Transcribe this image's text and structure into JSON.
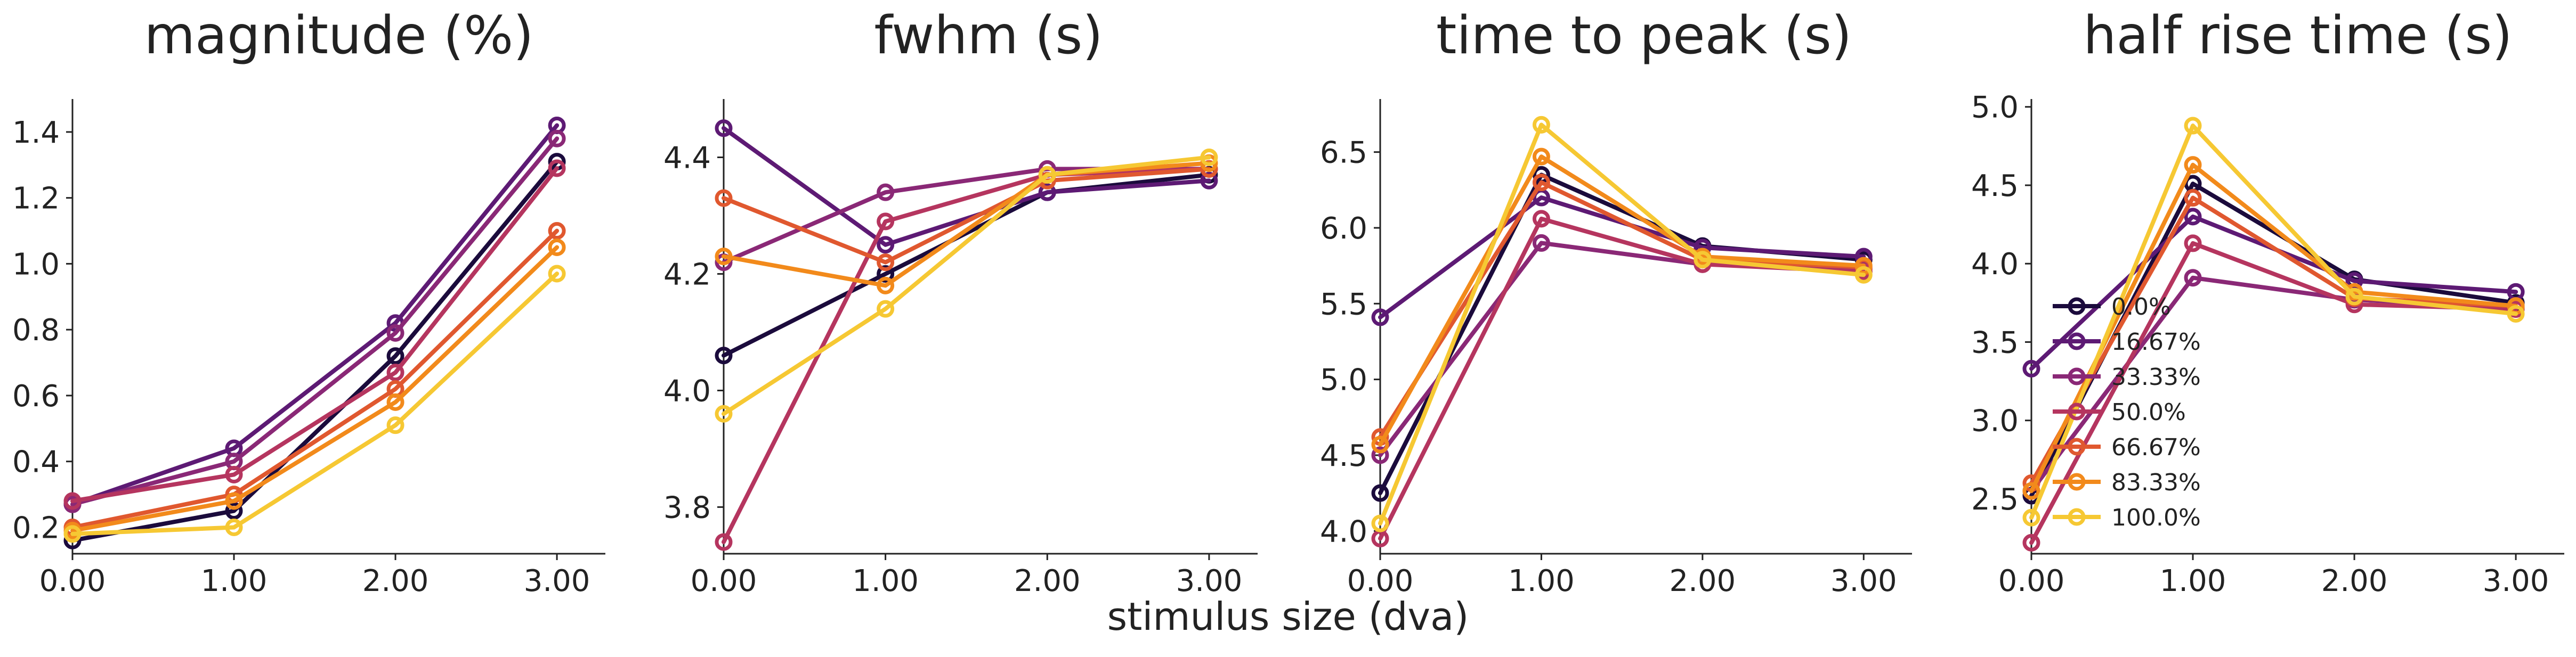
{
  "figure": {
    "xlabel": "stimulus size (dva)"
  },
  "series_colors": {
    "0.0%": "#1b0b3c",
    "16.67%": "#5d1a74",
    "33.33%": "#8a2876",
    "50.0%": "#b5355f",
    "66.67%": "#e0582f",
    "83.33%": "#f28a1b",
    "100.0%": "#f6c833"
  },
  "chart_data": [
    {
      "type": "line",
      "title": "magnitude (%)",
      "xlabel": "",
      "ylabel": "",
      "x": [
        0,
        1,
        2,
        3
      ],
      "xticks": [
        "0.00",
        "1.00",
        "2.00",
        "3.00"
      ],
      "xlim": [
        0,
        3.3
      ],
      "ylim": [
        0.12,
        1.5
      ],
      "yticks": [
        0.2,
        0.4,
        0.6,
        0.8,
        1.0,
        1.2,
        1.4
      ],
      "yticklabels": [
        "0.2",
        "0.4",
        "0.6",
        "0.8",
        "1.0",
        "1.2",
        "1.4"
      ],
      "series": [
        {
          "name": "0.0%",
          "values": [
            0.16,
            0.25,
            0.72,
            1.31
          ]
        },
        {
          "name": "16.67%",
          "values": [
            0.27,
            0.44,
            0.82,
            1.42
          ]
        },
        {
          "name": "33.33%",
          "values": [
            0.27,
            0.4,
            0.79,
            1.38
          ]
        },
        {
          "name": "50.0%",
          "values": [
            0.28,
            0.36,
            0.67,
            1.29
          ]
        },
        {
          "name": "66.67%",
          "values": [
            0.2,
            0.3,
            0.62,
            1.1
          ]
        },
        {
          "name": "83.33%",
          "values": [
            0.19,
            0.28,
            0.58,
            1.05
          ]
        },
        {
          "name": "100.0%",
          "values": [
            0.18,
            0.2,
            0.51,
            0.97
          ]
        }
      ],
      "grid": false,
      "legend": null
    },
    {
      "type": "line",
      "title": "fwhm (s)",
      "xlabel": "",
      "ylabel": "",
      "x": [
        0,
        1,
        2,
        3
      ],
      "xticks": [
        "0.00",
        "1.00",
        "2.00",
        "3.00"
      ],
      "xlim": [
        0,
        3.3
      ],
      "ylim": [
        3.72,
        4.5
      ],
      "yticks": [
        3.8,
        4.0,
        4.2,
        4.4
      ],
      "yticklabels": [
        "3.8",
        "4.0",
        "4.2",
        "4.4"
      ],
      "series": [
        {
          "name": "0.0%",
          "values": [
            4.06,
            4.2,
            4.34,
            4.37
          ]
        },
        {
          "name": "16.67%",
          "values": [
            4.45,
            4.25,
            4.34,
            4.36
          ]
        },
        {
          "name": "33.33%",
          "values": [
            4.22,
            4.34,
            4.38,
            4.38
          ]
        },
        {
          "name": "50.0%",
          "values": [
            3.74,
            4.29,
            4.37,
            4.38
          ]
        },
        {
          "name": "66.67%",
          "values": [
            4.33,
            4.22,
            4.36,
            4.38
          ]
        },
        {
          "name": "83.33%",
          "values": [
            4.23,
            4.18,
            4.37,
            4.39
          ]
        },
        {
          "name": "100.0%",
          "values": [
            3.96,
            4.14,
            4.37,
            4.4
          ]
        }
      ],
      "grid": false,
      "legend": null
    },
    {
      "type": "line",
      "title": "time to peak (s)",
      "xlabel": "",
      "ylabel": "",
      "x": [
        0,
        1,
        2,
        3
      ],
      "xticks": [
        "0.00",
        "1.00",
        "2.00",
        "3.00"
      ],
      "xlim": [
        0,
        3.3
      ],
      "ylim": [
        3.85,
        6.85
      ],
      "yticks": [
        4.0,
        4.5,
        5.0,
        5.5,
        6.0,
        6.5
      ],
      "yticklabels": [
        "4.0",
        "4.5",
        "5.0",
        "5.5",
        "6.0",
        "6.5"
      ],
      "series": [
        {
          "name": "0.0%",
          "values": [
            4.25,
            6.35,
            5.88,
            5.79
          ]
        },
        {
          "name": "16.67%",
          "values": [
            5.41,
            6.2,
            5.87,
            5.81
          ]
        },
        {
          "name": "33.33%",
          "values": [
            4.5,
            5.9,
            5.76,
            5.73
          ]
        },
        {
          "name": "50.0%",
          "values": [
            3.95,
            6.06,
            5.76,
            5.71
          ]
        },
        {
          "name": "66.67%",
          "values": [
            4.62,
            6.3,
            5.79,
            5.74
          ]
        },
        {
          "name": "83.33%",
          "values": [
            4.57,
            6.47,
            5.81,
            5.75
          ]
        },
        {
          "name": "100.0%",
          "values": [
            4.05,
            6.68,
            5.79,
            5.69
          ]
        }
      ],
      "grid": false,
      "legend": null
    },
    {
      "type": "line",
      "title": "half rise time (s)",
      "xlabel": "",
      "ylabel": "",
      "x": [
        0,
        1,
        2,
        3
      ],
      "xticks": [
        "0.00",
        "1.00",
        "2.00",
        "3.00"
      ],
      "xlim": [
        0,
        3.3
      ],
      "ylim": [
        2.15,
        5.05
      ],
      "yticks": [
        2.5,
        3.0,
        3.5,
        4.0,
        4.5,
        5.0
      ],
      "yticklabels": [
        "2.5",
        "3.0",
        "3.5",
        "4.0",
        "4.5",
        "5.0"
      ],
      "series": [
        {
          "name": "0.0%",
          "values": [
            2.52,
            4.51,
            3.9,
            3.75
          ]
        },
        {
          "name": "16.67%",
          "values": [
            3.33,
            4.3,
            3.89,
            3.82
          ]
        },
        {
          "name": "33.33%",
          "values": [
            2.55,
            3.91,
            3.77,
            3.72
          ]
        },
        {
          "name": "50.0%",
          "values": [
            2.22,
            4.13,
            3.74,
            3.71
          ]
        },
        {
          "name": "66.67%",
          "values": [
            2.6,
            4.42,
            3.78,
            3.73
          ]
        },
        {
          "name": "83.33%",
          "values": [
            2.55,
            4.63,
            3.82,
            3.73
          ]
        },
        {
          "name": "100.0%",
          "values": [
            2.38,
            4.88,
            3.79,
            3.68
          ]
        }
      ],
      "grid": false,
      "legend": "center-left"
    }
  ]
}
